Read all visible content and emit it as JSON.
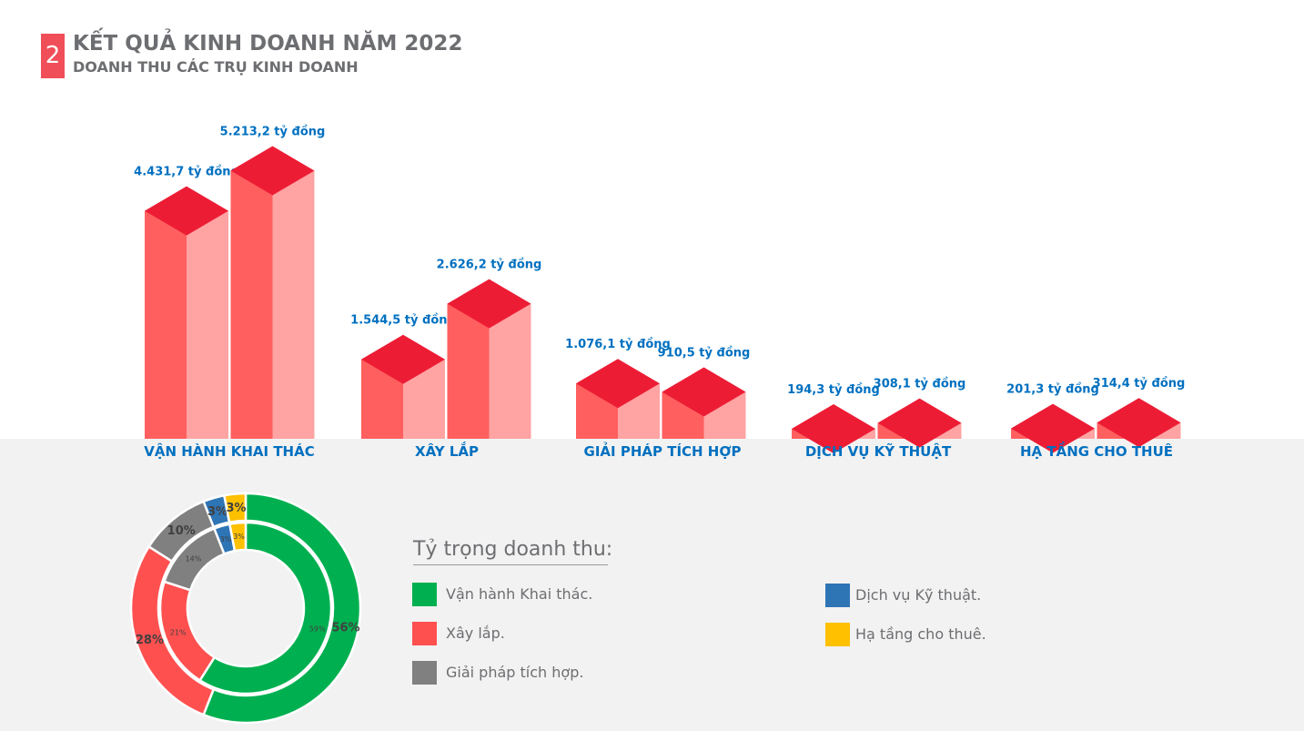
{
  "header": {
    "badge": "2",
    "title": "KẾT QUẢ KINH DOANH NĂM 2022",
    "subtitle": "DOANH THU CÁC TRỤ KINH DOANH"
  },
  "chart_data": [
    {
      "type": "bar",
      "categories": [
        "VẬN HÀNH KHAI THÁC",
        "XÂY LẮP",
        "GIẢI PHÁP TÍCH HỢP",
        "DỊCH VỤ KỸ THUẬT",
        "HẠ TẦNG CHO THUÊ"
      ],
      "series": [
        {
          "values": [
            4431.7,
            1544.5,
            1076.1,
            194.3,
            201.3
          ]
        },
        {
          "values": [
            5213.2,
            2626.2,
            910.5,
            308.1,
            314.4
          ]
        }
      ],
      "data_labels": [
        [
          "4.431,7 tỷ đồng",
          "1.544,5 tỷ đồng",
          "1.076,1 tỷ đồng",
          "194,3 tỷ đồng",
          "201,3 tỷ đồng"
        ],
        [
          "5.213,2 tỷ đồng",
          "2.626,2 tỷ đồng",
          "910,5 tỷ đồng",
          "308,1 tỷ đồng",
          "314,4 tỷ đồng"
        ]
      ],
      "colors": {
        "front": "#ff5f5f",
        "side": "#ffa3a3",
        "top": "#ed1c35",
        "label": "#0070c0",
        "category": "#0070c0"
      }
    },
    {
      "type": "pie",
      "legend_title": "Tỷ trọng doanh thu:",
      "categories": [
        "Vận hành Khai thác.",
        "Xây lắp.",
        "Giải pháp tích hợp.",
        "Dịch vụ Kỹ thuật.",
        "Hạ tầng cho thuê."
      ],
      "colors": [
        "#00b050",
        "#ff5050",
        "#808080",
        "#2e75b6",
        "#ffc000"
      ],
      "series": [
        {
          "ring": "outer",
          "values": [
            56,
            28,
            10,
            3,
            3
          ],
          "labels": [
            "56%",
            "28%",
            "10%",
            "3%",
            "3%"
          ]
        },
        {
          "ring": "inner",
          "values": [
            59,
            21,
            14,
            3,
            3
          ],
          "labels": [
            "59%",
            "21%",
            "14%",
            "3%",
            "3%"
          ]
        }
      ]
    }
  ]
}
